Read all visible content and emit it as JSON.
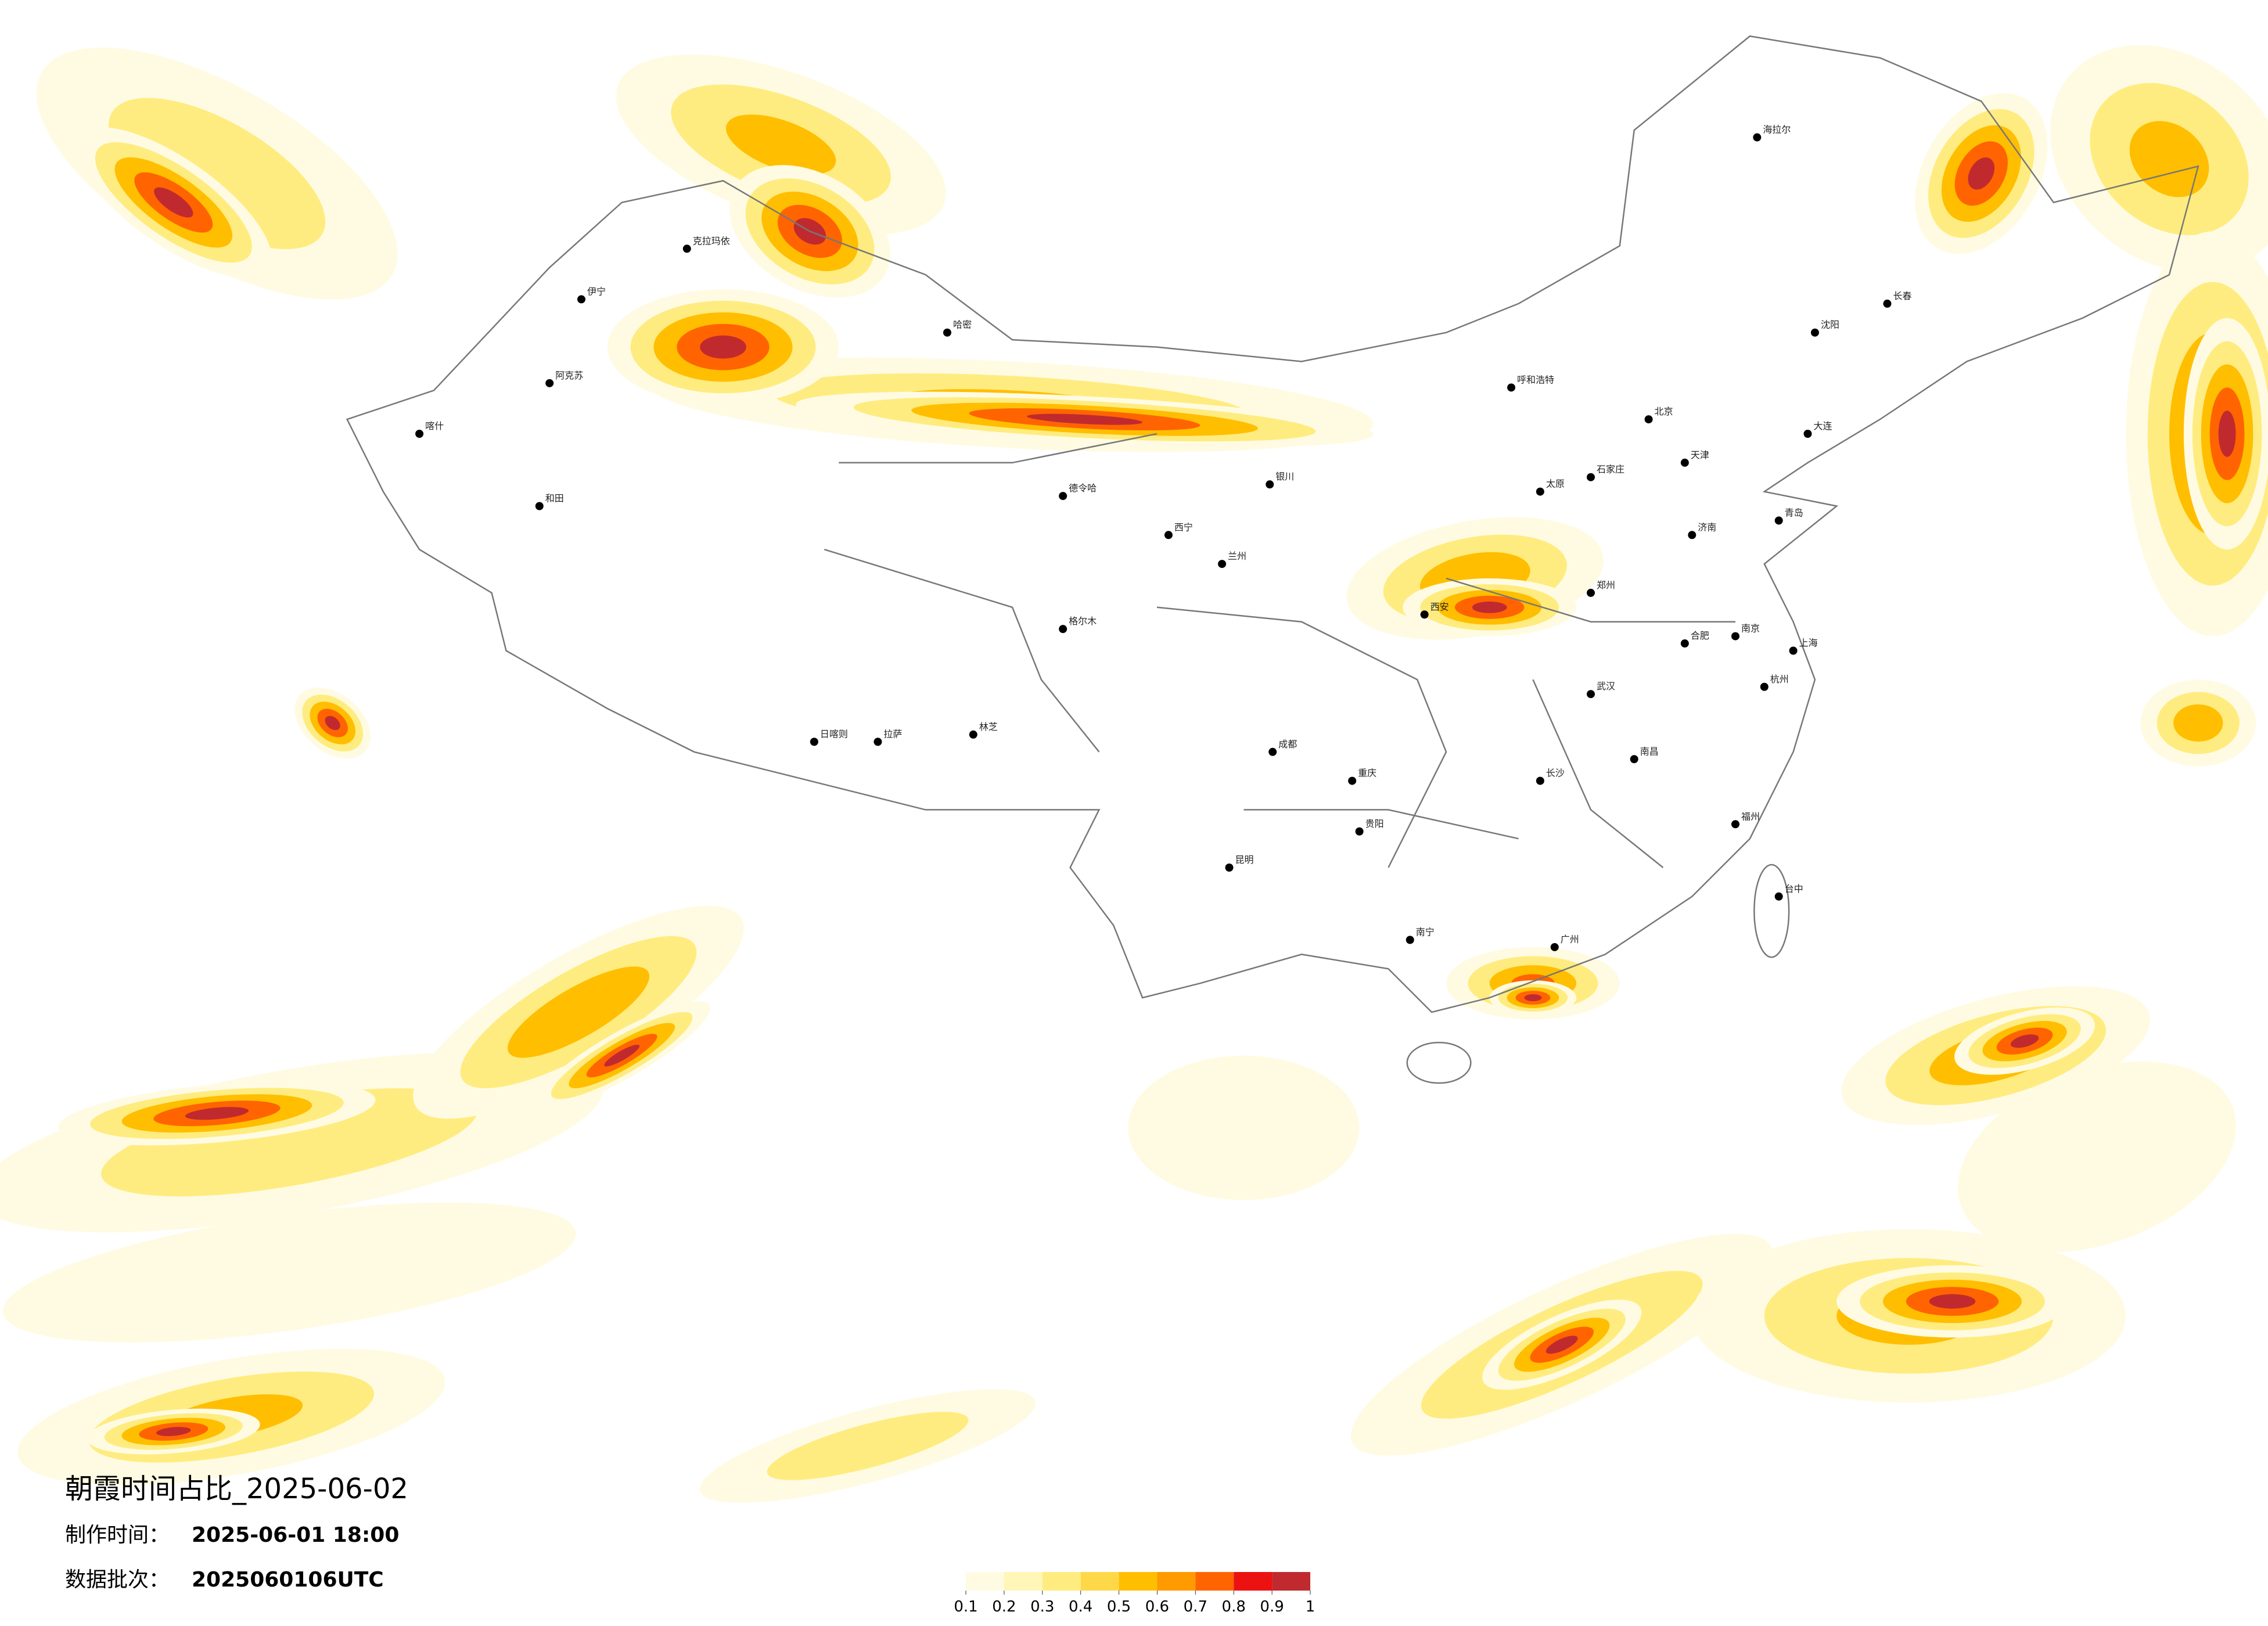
{
  "header": {
    "title": "朝霞时间占比_2025-06-02",
    "made_label": "制作时间：",
    "made_time": "2025-06-01 18:00",
    "batch_label": "数据批次：",
    "batch": "2025060106UTC"
  },
  "legend": {
    "ticks": [
      0.1,
      0.2,
      0.3,
      0.4,
      0.5,
      0.6,
      0.7,
      0.8,
      0.9,
      1
    ],
    "colors": [
      "#fffbe3",
      "#fff6b8",
      "#ffec80",
      "#ffd84a",
      "#ffbe00",
      "#ff9a00",
      "#ff6400",
      "#ec1212",
      "#c02a2e"
    ]
  },
  "cities": [
    "海拉尔",
    "克拉玛依",
    "伊宁",
    "阿克苏",
    "喀什",
    "和田",
    "哈密",
    "德令哈",
    "格尔木",
    "日喀则",
    "拉萨",
    "林芝",
    "西宁",
    "兰州",
    "银川",
    "呼和浩特",
    "北京",
    "天津",
    "石家庄",
    "太原",
    "济南",
    "郑州",
    "西安",
    "成都",
    "重庆",
    "贵阳",
    "昆明",
    "南宁",
    "广州",
    "长沙",
    "武汉",
    "南京",
    "上海",
    "杭州",
    "福州",
    "南昌",
    "合肥",
    "沈阳",
    "长春",
    "大连",
    "青岛",
    "台中"
  ]
}
